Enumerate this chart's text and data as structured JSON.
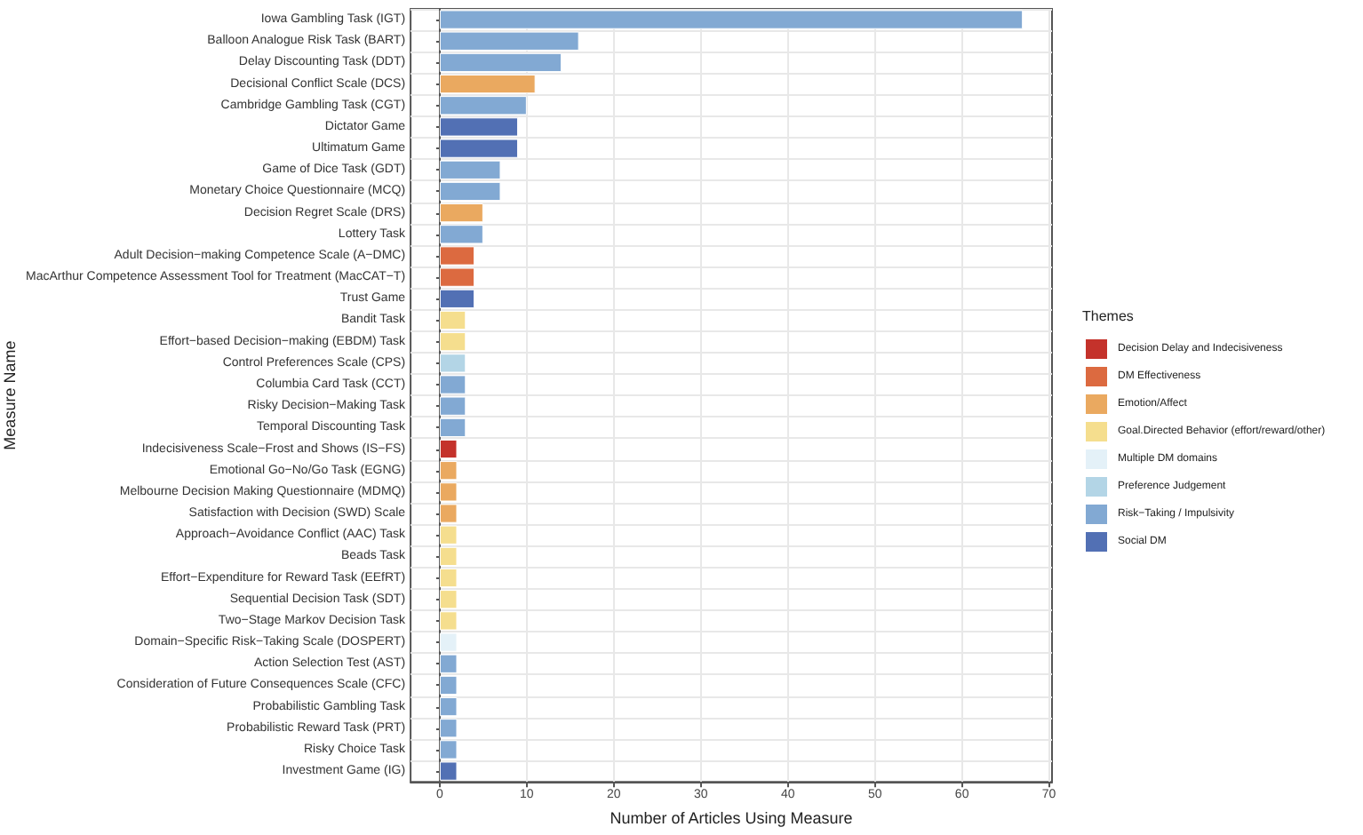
{
  "chart_data": {
    "type": "bar",
    "orientation": "horizontal",
    "stacked": true,
    "xlabel": "Number of Articles Using Measure",
    "ylabel": "Measure Name",
    "legend_title": "Themes",
    "legend": "right",
    "grid": true,
    "categories": [
      "Iowa Gambling Task (IGT)",
      "Balloon Analogue Risk Task (BART)",
      "Delay Discounting Task (DDT)",
      "Decisional Conflict Scale (DCS)",
      "Cambridge Gambling Task (CGT)",
      "Dictator Game",
      "Ultimatum Game",
      "Game of Dice Task (GDT)",
      "Monetary Choice Questionnaire (MCQ)",
      "Decision Regret Scale (DRS)",
      "Lottery Task",
      "Adult Decision−making Competence Scale (A−DMC)",
      "MacArthur Competence Assessment Tool for Treatment (MacCAT−T)",
      "Trust Game",
      "Bandit Task",
      "Effort−based Decision−making (EBDM) Task",
      "Control Preferences Scale (CPS)",
      "Columbia Card Task (CCT)",
      "Risky Decision−Making Task",
      "Temporal Discounting Task",
      "Indecisiveness Scale−Frost and Shows (IS−FS)",
      "Emotional Go−No/Go Task (EGNG)",
      "Melbourne Decision Making Questionnaire (MDMQ)",
      "Satisfaction with Decision (SWD) Scale",
      "Approach−Avoidance Conflict (AAC) Task",
      "Beads Task",
      "Effort−Expenditure for Reward Task (EEfRT)",
      "Sequential Decision Task (SDT)",
      "Two−Stage Markov Decision Task",
      "Domain−Specific Risk−Taking Scale (DOSPERT)",
      "Action Selection Test (AST)",
      "Consideration of Future Consequences Scale (CFC)",
      "Probabilistic Gambling Task",
      "Probabilistic Reward Task (PRT)",
      "Risky Choice Task",
      "Investment Game (IG)"
    ],
    "series": [
      {
        "name": "Decision Delay and Indecisiveness",
        "color": "#c4322b",
        "values": [
          null,
          null,
          null,
          null,
          null,
          null,
          null,
          null,
          null,
          null,
          null,
          null,
          null,
          null,
          null,
          null,
          null,
          null,
          null,
          null,
          2,
          null,
          null,
          null,
          null,
          null,
          null,
          null,
          null,
          null,
          null,
          null,
          null,
          null,
          null,
          null
        ]
      },
      {
        "name": "DM Effectiveness",
        "color": "#dc6a40",
        "values": [
          null,
          null,
          null,
          null,
          null,
          null,
          null,
          null,
          null,
          null,
          null,
          4,
          4,
          null,
          null,
          null,
          null,
          null,
          null,
          null,
          null,
          null,
          null,
          null,
          null,
          null,
          null,
          null,
          null,
          null,
          null,
          null,
          null,
          null,
          null,
          null
        ]
      },
      {
        "name": "Emotion/Affect",
        "color": "#eaa960",
        "values": [
          null,
          null,
          null,
          11,
          null,
          null,
          null,
          null,
          null,
          5,
          null,
          null,
          null,
          null,
          null,
          null,
          null,
          null,
          null,
          null,
          null,
          2,
          2,
          2,
          null,
          null,
          null,
          null,
          null,
          null,
          null,
          null,
          null,
          null,
          null,
          null
        ]
      },
      {
        "name": "Goal.Directed Behavior (effort/reward/other)",
        "color": "#f5de8e",
        "values": [
          null,
          null,
          null,
          null,
          null,
          null,
          null,
          null,
          null,
          null,
          null,
          null,
          null,
          null,
          3,
          3,
          null,
          null,
          null,
          null,
          null,
          null,
          null,
          null,
          2,
          2,
          2,
          2,
          2,
          null,
          null,
          null,
          null,
          null,
          null,
          null
        ]
      },
      {
        "name": "Multiple DM domains",
        "color": "#e4f1f8",
        "values": [
          null,
          null,
          null,
          null,
          null,
          null,
          null,
          null,
          null,
          null,
          null,
          null,
          null,
          null,
          null,
          null,
          null,
          null,
          null,
          null,
          null,
          null,
          null,
          null,
          null,
          null,
          null,
          null,
          null,
          2,
          null,
          null,
          null,
          null,
          null,
          null
        ]
      },
      {
        "name": "Preference Judgement",
        "color": "#b3d5e6",
        "values": [
          null,
          null,
          null,
          null,
          null,
          null,
          null,
          null,
          null,
          null,
          null,
          null,
          null,
          null,
          null,
          null,
          3,
          null,
          null,
          null,
          null,
          null,
          null,
          null,
          null,
          null,
          null,
          null,
          null,
          null,
          null,
          null,
          null,
          null,
          null,
          null
        ]
      },
      {
        "name": "Risk−Taking / Impulsivity",
        "color": "#82a9d3",
        "values": [
          67,
          16,
          14,
          null,
          10,
          null,
          null,
          7,
          7,
          null,
          5,
          null,
          null,
          null,
          null,
          null,
          null,
          3,
          3,
          3,
          null,
          null,
          null,
          null,
          null,
          null,
          null,
          null,
          null,
          null,
          2,
          2,
          2,
          2,
          2,
          null
        ]
      },
      {
        "name": "Social DM",
        "color": "#5270b4",
        "values": [
          null,
          null,
          null,
          null,
          null,
          9,
          9,
          null,
          null,
          null,
          null,
          null,
          null,
          4,
          null,
          null,
          null,
          null,
          null,
          null,
          null,
          null,
          null,
          null,
          null,
          null,
          null,
          null,
          null,
          null,
          null,
          null,
          null,
          null,
          null,
          2
        ]
      }
    ],
    "xlim": [
      -3.35,
      70.35
    ],
    "xticks": [
      0,
      10,
      20,
      30,
      40,
      50,
      60,
      70
    ]
  }
}
